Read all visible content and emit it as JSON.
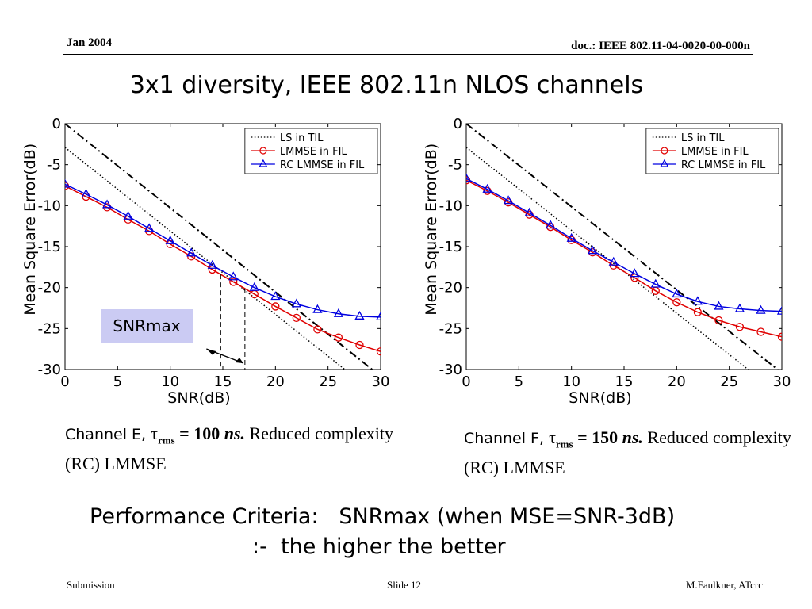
{
  "header": {
    "date": "Jan 2004",
    "doc_id": "doc.: IEEE 802.11-04-0020-00-000n"
  },
  "slide_title": "3x1 diversity, IEEE 802.11n NLOS channels",
  "chart_data": [
    {
      "type": "line",
      "title": "",
      "xlabel": "SNR(dB)",
      "ylabel": "Mean Square Error(dB)",
      "xlim": [
        0,
        30
      ],
      "ylim": [
        -30,
        0
      ],
      "xticks": [
        0,
        5,
        10,
        15,
        20,
        25,
        30
      ],
      "yticks": [
        0,
        -5,
        -10,
        -15,
        -20,
        -25,
        -30
      ],
      "grid": false,
      "legend_position": "top-right",
      "annotation": "SNRmax",
      "marker_lines_x": [
        14.8,
        17.1
      ],
      "series": [
        {
          "name": "LS in TIL",
          "style": "dotted",
          "color": "#000000",
          "x": [
            0,
            26.6
          ],
          "y": [
            -2.9,
            -30
          ]
        },
        {
          "name": "",
          "style": "dashdot",
          "color": "#000000",
          "x": [
            0,
            29.2
          ],
          "y": [
            0,
            -30
          ]
        },
        {
          "name": "LMMSE in FIL",
          "style": "solid",
          "marker": "circle",
          "color": "#e00000",
          "x": [
            0,
            2,
            4,
            6,
            8,
            10,
            12,
            14,
            16,
            18,
            20,
            22,
            24,
            26,
            28,
            30
          ],
          "y": [
            -7.6,
            -8.9,
            -10.2,
            -11.7,
            -13.1,
            -14.7,
            -16.2,
            -17.8,
            -19.3,
            -20.8,
            -22.3,
            -23.7,
            -25.1,
            -26.1,
            -27.0,
            -27.8
          ]
        },
        {
          "name": "RC LMMSE in FIL",
          "style": "solid",
          "marker": "triangle",
          "color": "#0000e0",
          "x": [
            0,
            2,
            4,
            6,
            8,
            10,
            12,
            14,
            16,
            18,
            20,
            22,
            24,
            26,
            28,
            30
          ],
          "y": [
            -7.4,
            -8.6,
            -9.9,
            -11.3,
            -12.8,
            -14.3,
            -15.8,
            -17.3,
            -18.7,
            -20.0,
            -21.1,
            -22.0,
            -22.7,
            -23.2,
            -23.5,
            -23.6
          ]
        }
      ]
    },
    {
      "type": "line",
      "title": "",
      "xlabel": "SNR(dB)",
      "ylabel": "Mean Square Error(dB)",
      "xlim": [
        0,
        30
      ],
      "ylim": [
        -30,
        0
      ],
      "xticks": [
        0,
        5,
        10,
        15,
        20,
        25,
        30
      ],
      "yticks": [
        0,
        -5,
        -10,
        -15,
        -20,
        -25,
        -30
      ],
      "grid": false,
      "legend_position": "top-right",
      "series": [
        {
          "name": "LS in TIL",
          "style": "dotted",
          "color": "#000000",
          "x": [
            0,
            26.8
          ],
          "y": [
            -2.9,
            -30
          ]
        },
        {
          "name": "",
          "style": "dashdot",
          "color": "#000000",
          "x": [
            0,
            29.6
          ],
          "y": [
            0,
            -30
          ]
        },
        {
          "name": "LMMSE in FIL",
          "style": "solid",
          "marker": "circle",
          "color": "#e00000",
          "x": [
            0,
            2,
            4,
            6,
            8,
            10,
            12,
            14,
            16,
            18,
            20,
            22,
            24,
            26,
            28,
            30
          ],
          "y": [
            -6.9,
            -8.2,
            -9.6,
            -11.1,
            -12.6,
            -14.2,
            -15.7,
            -17.3,
            -18.8,
            -20.4,
            -21.8,
            -23.0,
            -24.0,
            -24.8,
            -25.4,
            -26.0
          ]
        },
        {
          "name": "RC LMMSE in FIL",
          "style": "solid",
          "marker": "triangle",
          "color": "#0000e0",
          "x": [
            0,
            2,
            4,
            6,
            8,
            10,
            12,
            14,
            16,
            18,
            20,
            22,
            24,
            26,
            28,
            30
          ],
          "y": [
            -6.7,
            -8.0,
            -9.4,
            -10.9,
            -12.4,
            -14.0,
            -15.5,
            -16.9,
            -18.3,
            -19.6,
            -20.8,
            -21.7,
            -22.3,
            -22.6,
            -22.8,
            -22.9
          ]
        }
      ]
    }
  ],
  "captions": [
    {
      "channel": "Channel E, ",
      "tau": "τ",
      "rms": "rms",
      "value": " = 100 ",
      "unit": "ns.",
      "rest": " Reduced complexity (RC) LMMSE"
    },
    {
      "channel": "Channel F, ",
      "tau": "τ",
      "rms": "rms",
      "value": " = 150 ",
      "unit": "ns.",
      "rest": " Reduced complexity (RC) LMMSE"
    }
  ],
  "criteria": {
    "line1": "Performance Criteria:   SNRmax (when MSE=SNR-3dB)",
    "line2": ":-  the higher the better"
  },
  "footer": {
    "left": "Submission",
    "center": "Slide 12",
    "right": "M.Faulkner, ATcrc"
  }
}
